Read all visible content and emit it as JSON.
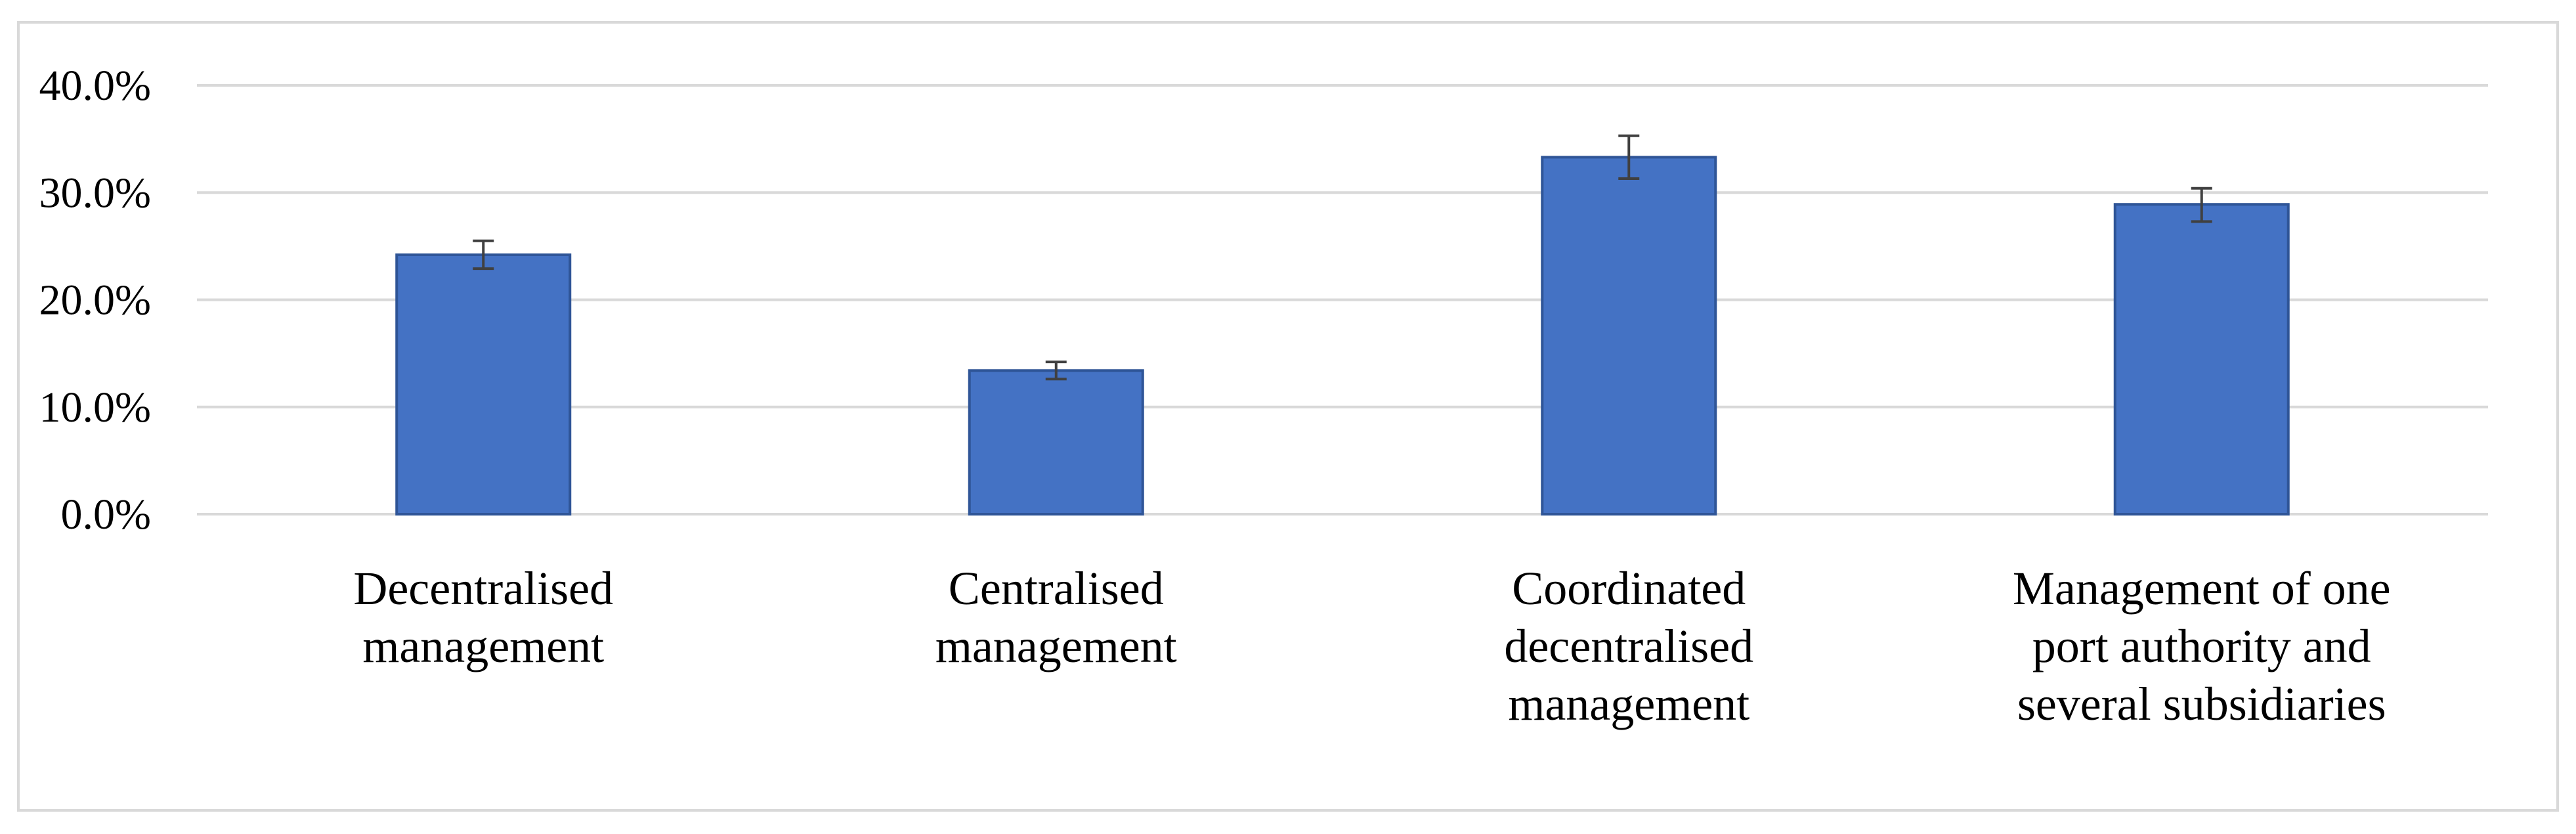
{
  "chart_data": {
    "type": "bar",
    "categories": [
      [
        "Decentralised",
        "management"
      ],
      [
        "Centralised",
        "management"
      ],
      [
        "Coordinated",
        "decentralised",
        "management"
      ],
      [
        "Management of one",
        "port authority and",
        "several subsidiaries"
      ]
    ],
    "values": [
      24.2,
      13.4,
      33.3,
      28.9
    ],
    "error_low": [
      22.9,
      12.6,
      31.3,
      27.3
    ],
    "error_high": [
      25.5,
      14.2,
      35.3,
      30.4
    ],
    "ylim": [
      0,
      40
    ],
    "yticks": [
      "0.0%",
      "10.0%",
      "20.0%",
      "30.0%",
      "40.0%"
    ],
    "ytick_values": [
      0,
      10,
      20,
      30,
      40
    ],
    "title": "",
    "xlabel": "",
    "ylabel": "",
    "grid": true,
    "legend": "none",
    "colors": {
      "bar": "#4472c4",
      "bar_edge": "#2f5597",
      "error_bar": "#404040",
      "grid": "#d9d9d9"
    }
  }
}
